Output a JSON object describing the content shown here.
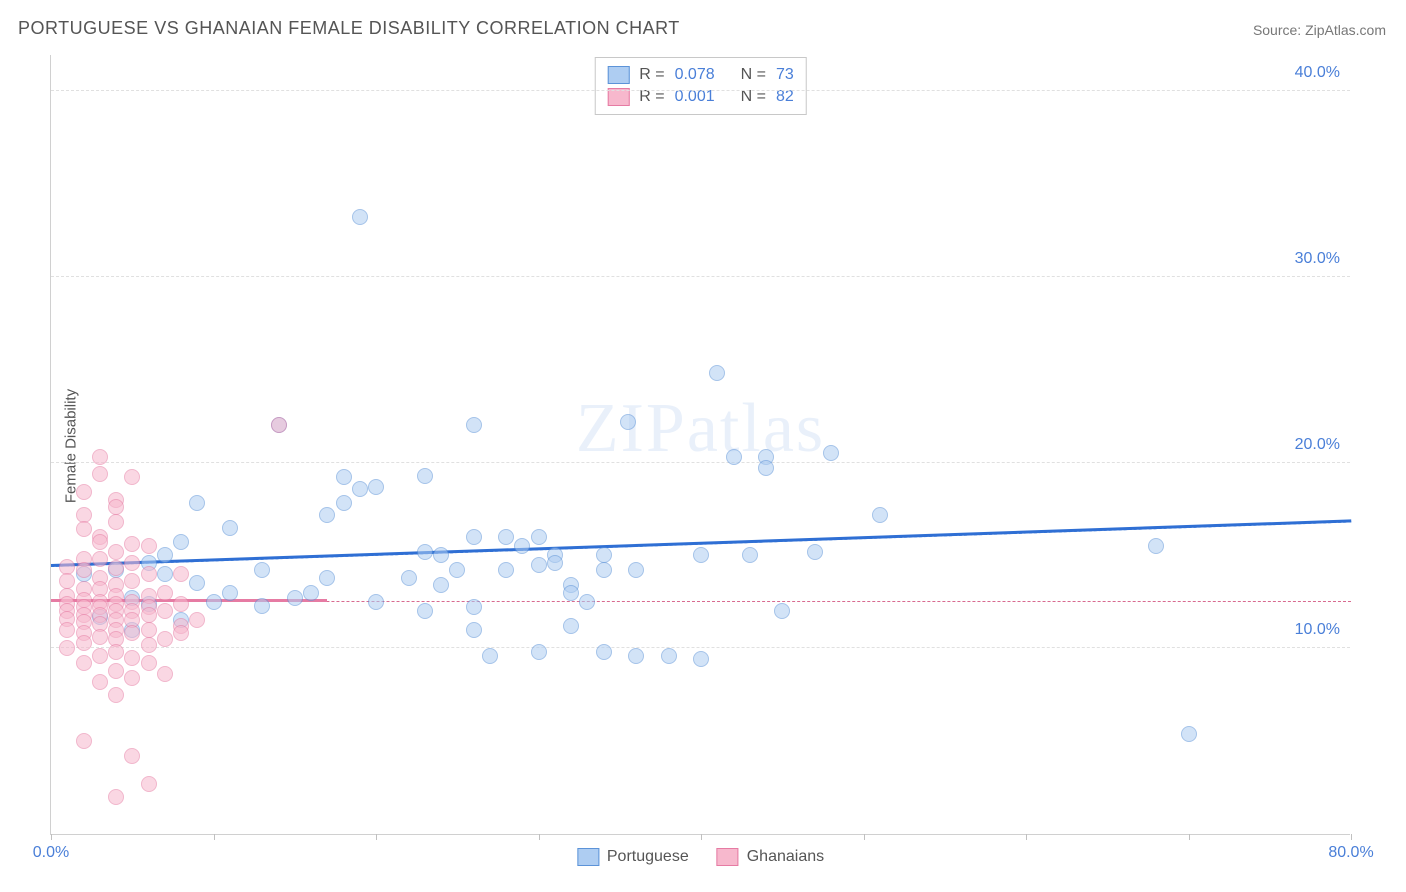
{
  "title": "PORTUGUESE VS GHANAIAN FEMALE DISABILITY CORRELATION CHART",
  "source": "Source: ZipAtlas.com",
  "ylabel": "Female Disability",
  "watermark": "ZIPatlas",
  "chart": {
    "type": "scatter",
    "xlim": [
      0,
      80
    ],
    "ylim": [
      0,
      42
    ],
    "background_color": "#ffffff",
    "grid_color": "#e0e0e0",
    "axis_color": "#d0d0d0",
    "marker_radius": 8,
    "marker_opacity": 0.55,
    "yticks": [
      {
        "v": 10,
        "label": "10.0%"
      },
      {
        "v": 20,
        "label": "20.0%"
      },
      {
        "v": 30,
        "label": "30.0%"
      },
      {
        "v": 40,
        "label": "40.0%"
      }
    ],
    "xticks_marks": [
      0,
      10,
      20,
      30,
      40,
      50,
      60,
      70,
      80
    ],
    "xticks_labels": [
      {
        "v": 0,
        "label": "0.0%"
      },
      {
        "v": 80,
        "label": "80.0%"
      }
    ],
    "tick_label_color": "#4a7fd8",
    "series": [
      {
        "name": "Portuguese",
        "fill": "#aecdf2",
        "stroke": "#5c93d8",
        "points": [
          [
            19,
            33.2
          ],
          [
            41,
            24.8
          ],
          [
            35.5,
            22.2
          ],
          [
            26,
            22.0
          ],
          [
            14,
            22.0
          ],
          [
            48,
            20.5
          ],
          [
            44,
            20.3
          ],
          [
            44,
            19.7
          ],
          [
            42,
            20.3
          ],
          [
            23,
            19.3
          ],
          [
            18,
            19.2
          ],
          [
            19,
            18.6
          ],
          [
            18,
            17.8
          ],
          [
            20,
            18.7
          ],
          [
            9,
            17.8
          ],
          [
            17,
            17.2
          ],
          [
            11,
            16.5
          ],
          [
            51,
            17.2
          ],
          [
            8,
            15.7
          ],
          [
            28,
            16.0
          ],
          [
            26,
            16.0
          ],
          [
            30,
            16.0
          ],
          [
            29,
            15.5
          ],
          [
            23,
            15.2
          ],
          [
            24,
            15.0
          ],
          [
            31,
            15.0
          ],
          [
            31,
            14.6
          ],
          [
            34,
            15.0
          ],
          [
            40,
            15.0
          ],
          [
            47,
            15.2
          ],
          [
            6,
            14.6
          ],
          [
            7,
            15.0
          ],
          [
            7,
            14.0
          ],
          [
            13,
            14.2
          ],
          [
            4,
            14.2
          ],
          [
            9,
            13.5
          ],
          [
            2,
            14.0
          ],
          [
            17,
            13.8
          ],
          [
            22,
            13.8
          ],
          [
            25,
            14.2
          ],
          [
            24,
            13.4
          ],
          [
            28,
            14.2
          ],
          [
            30,
            14.5
          ],
          [
            32,
            13.4
          ],
          [
            34,
            14.2
          ],
          [
            32,
            13.0
          ],
          [
            36,
            14.2
          ],
          [
            43,
            15.0
          ],
          [
            45,
            12.0
          ],
          [
            5,
            12.7
          ],
          [
            6,
            12.4
          ],
          [
            10,
            12.5
          ],
          [
            11,
            13.0
          ],
          [
            13,
            12.3
          ],
          [
            15,
            12.7
          ],
          [
            16,
            13.0
          ],
          [
            20,
            12.5
          ],
          [
            23,
            12.0
          ],
          [
            26,
            12.2
          ],
          [
            33,
            12.5
          ],
          [
            3,
            11.7
          ],
          [
            5,
            11.0
          ],
          [
            8,
            11.5
          ],
          [
            26,
            11.0
          ],
          [
            32,
            11.2
          ],
          [
            27,
            9.6
          ],
          [
            30,
            9.8
          ],
          [
            34,
            9.8
          ],
          [
            36,
            9.6
          ],
          [
            38,
            9.6
          ],
          [
            40,
            9.4
          ],
          [
            70,
            5.4
          ],
          [
            68,
            15.5
          ]
        ],
        "trend": {
          "y_at_x0": 14.4,
          "y_at_xmax": 16.8,
          "color": "#2f6fd4",
          "width": 2.5,
          "dash_color": "#2f6fd4"
        }
      },
      {
        "name": "Ghanaians",
        "fill": "#f7b8cd",
        "stroke": "#e67ba3",
        "points": [
          [
            14,
            22.0
          ],
          [
            3,
            20.3
          ],
          [
            3,
            19.4
          ],
          [
            5,
            19.2
          ],
          [
            2,
            18.4
          ],
          [
            4,
            18.0
          ],
          [
            4,
            17.6
          ],
          [
            2,
            17.2
          ],
          [
            4,
            16.8
          ],
          [
            2,
            16.4
          ],
          [
            3,
            16.0
          ],
          [
            3,
            15.7
          ],
          [
            5,
            15.6
          ],
          [
            6,
            15.5
          ],
          [
            4,
            15.2
          ],
          [
            2,
            14.8
          ],
          [
            3,
            14.8
          ],
          [
            5,
            14.6
          ],
          [
            1,
            14.4
          ],
          [
            4,
            14.3
          ],
          [
            2,
            14.2
          ],
          [
            6,
            14.0
          ],
          [
            8,
            14.0
          ],
          [
            3,
            13.8
          ],
          [
            1,
            13.6
          ],
          [
            5,
            13.6
          ],
          [
            4,
            13.4
          ],
          [
            2,
            13.2
          ],
          [
            3,
            13.2
          ],
          [
            7,
            13.0
          ],
          [
            1,
            12.8
          ],
          [
            4,
            12.8
          ],
          [
            6,
            12.8
          ],
          [
            2,
            12.6
          ],
          [
            3,
            12.5
          ],
          [
            5,
            12.5
          ],
          [
            1,
            12.4
          ],
          [
            4,
            12.4
          ],
          [
            8,
            12.4
          ],
          [
            2,
            12.2
          ],
          [
            3,
            12.2
          ],
          [
            6,
            12.2
          ],
          [
            1,
            12.0
          ],
          [
            4,
            12.0
          ],
          [
            5,
            12.0
          ],
          [
            7,
            12.0
          ],
          [
            2,
            11.8
          ],
          [
            3,
            11.8
          ],
          [
            6,
            11.8
          ],
          [
            1,
            11.6
          ],
          [
            4,
            11.5
          ],
          [
            5,
            11.5
          ],
          [
            2,
            11.4
          ],
          [
            3,
            11.3
          ],
          [
            8,
            11.2
          ],
          [
            1,
            11.0
          ],
          [
            4,
            11.0
          ],
          [
            6,
            11.0
          ],
          [
            2,
            10.8
          ],
          [
            5,
            10.8
          ],
          [
            3,
            10.6
          ],
          [
            4,
            10.5
          ],
          [
            7,
            10.5
          ],
          [
            2,
            10.3
          ],
          [
            6,
            10.2
          ],
          [
            1,
            10.0
          ],
          [
            4,
            9.8
          ],
          [
            3,
            9.6
          ],
          [
            5,
            9.5
          ],
          [
            2,
            9.2
          ],
          [
            6,
            9.2
          ],
          [
            4,
            8.8
          ],
          [
            7,
            8.6
          ],
          [
            5,
            8.4
          ],
          [
            3,
            8.2
          ],
          [
            4,
            7.5
          ],
          [
            2,
            5.0
          ],
          [
            5,
            4.2
          ],
          [
            6,
            2.7
          ],
          [
            4,
            2.0
          ],
          [
            8,
            10.8
          ],
          [
            9,
            11.5
          ]
        ],
        "trend": {
          "y_at_x0": 12.5,
          "y_at_xmax": 12.5,
          "color": "#e67ba3",
          "width": 2.5,
          "solid_until_x": 17,
          "dash_color": "#d86a8f"
        }
      }
    ],
    "stats_box": {
      "rows": [
        {
          "swatch_fill": "#aecdf2",
          "swatch_stroke": "#5c93d8",
          "r_label": "R =",
          "r_val": "0.078",
          "n_label": "N =",
          "n_val": "73"
        },
        {
          "swatch_fill": "#f7b8cd",
          "swatch_stroke": "#e67ba3",
          "r_label": "R =",
          "r_val": "0.001",
          "n_label": "N =",
          "n_val": "82"
        }
      ]
    },
    "bottom_legend": [
      {
        "swatch_fill": "#aecdf2",
        "swatch_stroke": "#5c93d8",
        "label": "Portuguese"
      },
      {
        "swatch_fill": "#f7b8cd",
        "swatch_stroke": "#e67ba3",
        "label": "Ghanaians"
      }
    ]
  }
}
